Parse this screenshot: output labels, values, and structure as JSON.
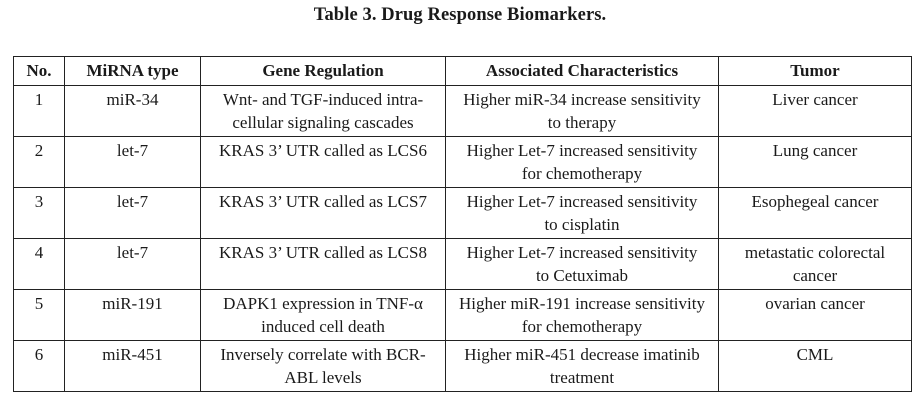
{
  "caption": "Table 3. Drug Response Biomarkers.",
  "headers": {
    "no": "No.",
    "mirna": "MiRNA type",
    "gene": "Gene Regulation",
    "assoc": "Associated Characteristics",
    "tumor": "Tumor"
  },
  "rows": [
    {
      "no": "1",
      "mirna": "miR-34",
      "gene_l1": "Wnt- and TGF-induced intra-",
      "gene_l2": "cellular signaling cascades",
      "assoc_l1": "Higher miR-34 increase sensitivity",
      "assoc_l2": "to therapy",
      "tumor_l1": "Liver cancer",
      "tumor_l2": ""
    },
    {
      "no": "2",
      "mirna": "let-7",
      "gene_l1": "KRAS 3’ UTR called as LCS6",
      "gene_l2": "",
      "assoc_l1": "Higher Let-7 increased sensitivity",
      "assoc_l2": "for chemotherapy",
      "tumor_l1": "Lung cancer",
      "tumor_l2": ""
    },
    {
      "no": "3",
      "mirna": "let-7",
      "gene_l1": "KRAS 3’ UTR called as LCS7",
      "gene_l2": "",
      "assoc_l1": "Higher Let-7 increased sensitivity",
      "assoc_l2": "to cisplatin",
      "tumor_l1": "Esophegeal cancer",
      "tumor_l2": ""
    },
    {
      "no": "4",
      "mirna": "let-7",
      "gene_l1": "KRAS 3’ UTR called as LCS8",
      "gene_l2": "",
      "assoc_l1": "Higher Let-7 increased sensitivity",
      "assoc_l2": "to Cetuximab",
      "tumor_l1": "metastatic colorectal",
      "tumor_l2": "cancer"
    },
    {
      "no": "5",
      "mirna": "miR-191",
      "gene_l1": "DAPK1 expression in TNF-α",
      "gene_l2": "induced cell death",
      "assoc_l1": "Higher miR-191 increase sensitivity",
      "assoc_l2": "for chemotherapy",
      "tumor_l1": "ovarian cancer",
      "tumor_l2": ""
    },
    {
      "no": "6",
      "mirna": "miR-451",
      "gene_l1": "Inversely correlate with BCR-",
      "gene_l2": "ABL levels",
      "assoc_l1": "Higher miR-451 decrease imatinib",
      "assoc_l2": "treatment",
      "tumor_l1": "CML",
      "tumor_l2": ""
    }
  ]
}
